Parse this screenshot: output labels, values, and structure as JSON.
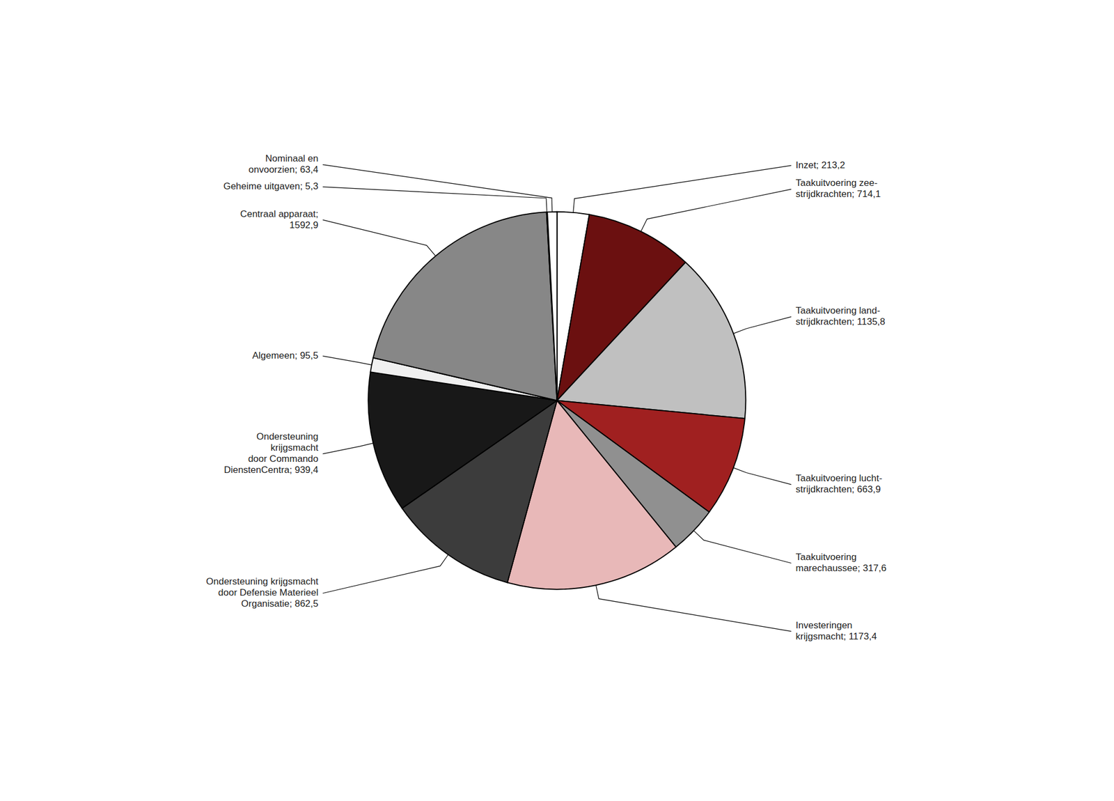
{
  "chart_data": {
    "type": "pie",
    "categories": [
      "Inzet; 213,2",
      "Taakuitvoering zee-\nstrijdkrachten; 714,1",
      "Taakuitvoering land-\nstrijdkrachten; 1135,8",
      "Taakuitvoering lucht-\nstrijdkrachten; 663,9",
      "Taakuitvoering\nmarechaussee; 317,6",
      "Investeringen\nkrijgsmacht; 1173,4",
      "Ondersteuning krijgsmacht\ndoor Defensie Materieel\nOrganisatie; 862,5",
      "Ondersteuning\nkrijgsmacht\ndoor Commando\nDienstenCentra; 939,4",
      "Algemeen; 95,5",
      "Centraal apparaat;\n1592,9",
      "Geheime uitgaven; 5,3",
      "Nominaal en\nonvoorzien; 63,4"
    ],
    "values": [
      213.2,
      714.1,
      1135.8,
      663.9,
      317.6,
      1173.4,
      862.5,
      939.4,
      95.5,
      1592.9,
      5.3,
      63.4
    ],
    "colors": [
      "#FFFFFF",
      "#6B1010",
      "#C0C0C0",
      "#A02020",
      "#909090",
      "#E8B8B8",
      "#3C3C3C",
      "#181818",
      "#F0F0F0",
      "#878787",
      "#8B1010",
      "#FFFFFF"
    ]
  }
}
